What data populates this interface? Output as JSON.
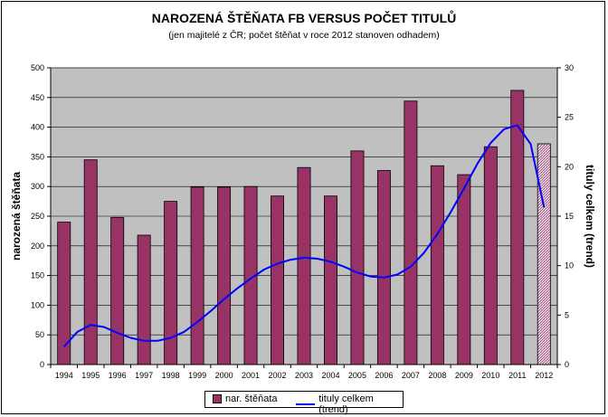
{
  "title": "NAROZENÁ ŠTĚŇATA FB VERSUS POČET TITULŮ",
  "subtitle": "(jen majitelé z ČR; počet štěňat v roce 2012 stanoven odhadem)",
  "chart_data": {
    "type": "bar",
    "categories": [
      "1994",
      "1995",
      "1996",
      "1997",
      "1998",
      "1999",
      "2000",
      "2001",
      "2002",
      "2003",
      "2004",
      "2005",
      "2006",
      "2007",
      "2008",
      "2009",
      "2010",
      "2011",
      "2012"
    ],
    "series": [
      {
        "name": "nar. štěňata",
        "type": "bar",
        "axis": "left",
        "color": "#993366",
        "values": [
          240,
          345,
          248,
          218,
          275,
          299,
          299,
          300,
          284,
          332,
          284,
          360,
          327,
          444,
          335,
          320,
          367,
          462,
          372
        ],
        "estimated_last": true
      },
      {
        "name": "tituly celkem (trend)",
        "type": "line",
        "axis": "right",
        "color": "#0000ff",
        "x": [
          1994,
          1994.5,
          1995,
          1995.5,
          1996,
          1996.5,
          1997,
          1997.5,
          1998,
          1998.5,
          1999,
          1999.5,
          2000,
          2000.5,
          2001,
          2001.5,
          2002,
          2002.5,
          2003,
          2003.5,
          2004,
          2004.5,
          2005,
          2005.5,
          2006,
          2006.5,
          2007,
          2007.5,
          2008,
          2008.5,
          2009,
          2009.5,
          2010,
          2010.5,
          2011,
          2011.5,
          2012
        ],
        "values": [
          1.8,
          3.3,
          4.0,
          3.8,
          3.2,
          2.7,
          2.4,
          2.4,
          2.7,
          3.3,
          4.3,
          5.4,
          6.6,
          7.7,
          8.7,
          9.6,
          10.2,
          10.6,
          10.8,
          10.7,
          10.4,
          9.9,
          9.3,
          8.9,
          8.8,
          9.1,
          9.9,
          11.3,
          13.2,
          15.4,
          17.8,
          20.3,
          22.4,
          23.8,
          24.2,
          22.3,
          15.9
        ]
      }
    ],
    "ylabel": "narozená štěňata",
    "ylim": [
      0,
      500
    ],
    "yticks": [
      0,
      50,
      100,
      150,
      200,
      250,
      300,
      350,
      400,
      450,
      500
    ],
    "y2label": "tituly celkem (trend)",
    "y2lim": [
      0,
      30
    ],
    "y2ticks": [
      0,
      5,
      10,
      15,
      20,
      25,
      30
    ],
    "grid": true,
    "legend": "bottom",
    "plot_background": "#c0c0c0"
  }
}
